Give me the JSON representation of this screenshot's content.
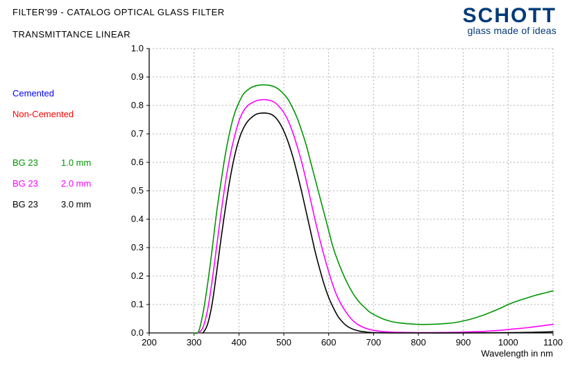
{
  "header": {
    "title": "FILTER'99 - CATALOG OPTICAL GLASS FILTER",
    "subtitle": "TRANSMITTANCE LINEAR"
  },
  "brand": {
    "name": "SCHOTT",
    "tagline": "glass made of ideas",
    "color": "#003a78"
  },
  "legend": {
    "cemented": {
      "label": "Cemented",
      "color": "#0000ff"
    },
    "non_cemented": {
      "label": "Non-Cemented",
      "color": "#ff0000"
    },
    "series": [
      {
        "name": "BG 23",
        "thickness": "1.0 mm",
        "name_color": "#009600",
        "thk_color": "#009600"
      },
      {
        "name": "BG 23",
        "thickness": "2.0 mm",
        "name_color": "#ff00ff",
        "thk_color": "#ff00ff"
      },
      {
        "name": "BG 23",
        "thickness": "3.0 mm",
        "name_color": "#000000",
        "thk_color": "#000000"
      }
    ]
  },
  "chart": {
    "type": "line",
    "background_color": "#ffffff",
    "grid_color": "#b0b0b0",
    "grid_dash": "2 3",
    "xlabel": "Wavelength in nm",
    "xlim": [
      200,
      1100
    ],
    "xtick_step": 100,
    "ylim": [
      0.0,
      1.0
    ],
    "ytick_step": 0.1,
    "label_fontsize": 13,
    "line_width": 1.6,
    "series": [
      {
        "name": "BG23 1.0mm",
        "color": "#009600",
        "points": [
          [
            300,
            0.0
          ],
          [
            310,
            0.005
          ],
          [
            320,
            0.07
          ],
          [
            330,
            0.17
          ],
          [
            340,
            0.29
          ],
          [
            350,
            0.42
          ],
          [
            360,
            0.53
          ],
          [
            370,
            0.63
          ],
          [
            380,
            0.71
          ],
          [
            390,
            0.77
          ],
          [
            400,
            0.81
          ],
          [
            410,
            0.84
          ],
          [
            420,
            0.855
          ],
          [
            430,
            0.865
          ],
          [
            440,
            0.87
          ],
          [
            450,
            0.872
          ],
          [
            460,
            0.872
          ],
          [
            470,
            0.87
          ],
          [
            480,
            0.865
          ],
          [
            490,
            0.855
          ],
          [
            500,
            0.84
          ],
          [
            510,
            0.82
          ],
          [
            520,
            0.79
          ],
          [
            530,
            0.755
          ],
          [
            540,
            0.71
          ],
          [
            550,
            0.66
          ],
          [
            560,
            0.6
          ],
          [
            570,
            0.54
          ],
          [
            580,
            0.48
          ],
          [
            590,
            0.42
          ],
          [
            600,
            0.36
          ],
          [
            610,
            0.3
          ],
          [
            620,
            0.255
          ],
          [
            630,
            0.215
          ],
          [
            640,
            0.18
          ],
          [
            650,
            0.15
          ],
          [
            660,
            0.125
          ],
          [
            670,
            0.105
          ],
          [
            680,
            0.09
          ],
          [
            690,
            0.075
          ],
          [
            700,
            0.065
          ],
          [
            720,
            0.05
          ],
          [
            740,
            0.04
          ],
          [
            760,
            0.035
          ],
          [
            780,
            0.032
          ],
          [
            800,
            0.03
          ],
          [
            820,
            0.03
          ],
          [
            840,
            0.031
          ],
          [
            860,
            0.033
          ],
          [
            880,
            0.036
          ],
          [
            900,
            0.042
          ],
          [
            920,
            0.05
          ],
          [
            940,
            0.06
          ],
          [
            960,
            0.072
          ],
          [
            980,
            0.085
          ],
          [
            1000,
            0.1
          ],
          [
            1020,
            0.112
          ],
          [
            1040,
            0.122
          ],
          [
            1060,
            0.132
          ],
          [
            1080,
            0.14
          ],
          [
            1100,
            0.148
          ]
        ]
      },
      {
        "name": "BG23 2.0mm",
        "color": "#ff00ff",
        "points": [
          [
            310,
            0.0
          ],
          [
            320,
            0.02
          ],
          [
            330,
            0.08
          ],
          [
            340,
            0.18
          ],
          [
            350,
            0.3
          ],
          [
            360,
            0.42
          ],
          [
            370,
            0.53
          ],
          [
            380,
            0.62
          ],
          [
            390,
            0.69
          ],
          [
            400,
            0.745
          ],
          [
            410,
            0.78
          ],
          [
            420,
            0.8
          ],
          [
            430,
            0.81
          ],
          [
            440,
            0.817
          ],
          [
            450,
            0.82
          ],
          [
            460,
            0.82
          ],
          [
            470,
            0.817
          ],
          [
            480,
            0.81
          ],
          [
            490,
            0.795
          ],
          [
            500,
            0.775
          ],
          [
            510,
            0.745
          ],
          [
            520,
            0.705
          ],
          [
            530,
            0.655
          ],
          [
            540,
            0.6
          ],
          [
            550,
            0.535
          ],
          [
            560,
            0.465
          ],
          [
            570,
            0.395
          ],
          [
            580,
            0.33
          ],
          [
            590,
            0.27
          ],
          [
            600,
            0.215
          ],
          [
            610,
            0.165
          ],
          [
            620,
            0.125
          ],
          [
            630,
            0.095
          ],
          [
            640,
            0.07
          ],
          [
            650,
            0.05
          ],
          [
            660,
            0.035
          ],
          [
            670,
            0.025
          ],
          [
            680,
            0.018
          ],
          [
            690,
            0.013
          ],
          [
            700,
            0.009
          ],
          [
            720,
            0.005
          ],
          [
            740,
            0.003
          ],
          [
            760,
            0.002
          ],
          [
            780,
            0.0015
          ],
          [
            800,
            0.001
          ],
          [
            820,
            0.001
          ],
          [
            840,
            0.0012
          ],
          [
            860,
            0.0015
          ],
          [
            880,
            0.002
          ],
          [
            900,
            0.003
          ],
          [
            920,
            0.004
          ],
          [
            940,
            0.005
          ],
          [
            960,
            0.007
          ],
          [
            980,
            0.009
          ],
          [
            1000,
            0.012
          ],
          [
            1020,
            0.015
          ],
          [
            1040,
            0.018
          ],
          [
            1060,
            0.022
          ],
          [
            1080,
            0.026
          ],
          [
            1100,
            0.03
          ]
        ]
      },
      {
        "name": "BG23 3.0mm",
        "color": "#000000",
        "points": [
          [
            320,
            0.0
          ],
          [
            330,
            0.03
          ],
          [
            340,
            0.1
          ],
          [
            350,
            0.21
          ],
          [
            360,
            0.33
          ],
          [
            370,
            0.44
          ],
          [
            380,
            0.54
          ],
          [
            390,
            0.62
          ],
          [
            400,
            0.68
          ],
          [
            410,
            0.72
          ],
          [
            420,
            0.745
          ],
          [
            430,
            0.76
          ],
          [
            440,
            0.77
          ],
          [
            450,
            0.773
          ],
          [
            460,
            0.773
          ],
          [
            470,
            0.77
          ],
          [
            480,
            0.76
          ],
          [
            490,
            0.74
          ],
          [
            500,
            0.71
          ],
          [
            510,
            0.67
          ],
          [
            520,
            0.62
          ],
          [
            530,
            0.56
          ],
          [
            540,
            0.495
          ],
          [
            550,
            0.425
          ],
          [
            560,
            0.355
          ],
          [
            570,
            0.285
          ],
          [
            580,
            0.225
          ],
          [
            590,
            0.17
          ],
          [
            600,
            0.125
          ],
          [
            610,
            0.09
          ],
          [
            620,
            0.06
          ],
          [
            630,
            0.04
          ],
          [
            640,
            0.025
          ],
          [
            650,
            0.016
          ],
          [
            660,
            0.01
          ],
          [
            670,
            0.006
          ],
          [
            680,
            0.004
          ],
          [
            690,
            0.002
          ],
          [
            700,
            0.001
          ],
          [
            720,
            0.0005
          ],
          [
            740,
            0.0
          ],
          [
            800,
            0.0
          ],
          [
            900,
            0.0
          ],
          [
            950,
            0.0005
          ],
          [
            1000,
            0.001
          ],
          [
            1050,
            0.002
          ],
          [
            1100,
            0.004
          ]
        ]
      }
    ]
  }
}
